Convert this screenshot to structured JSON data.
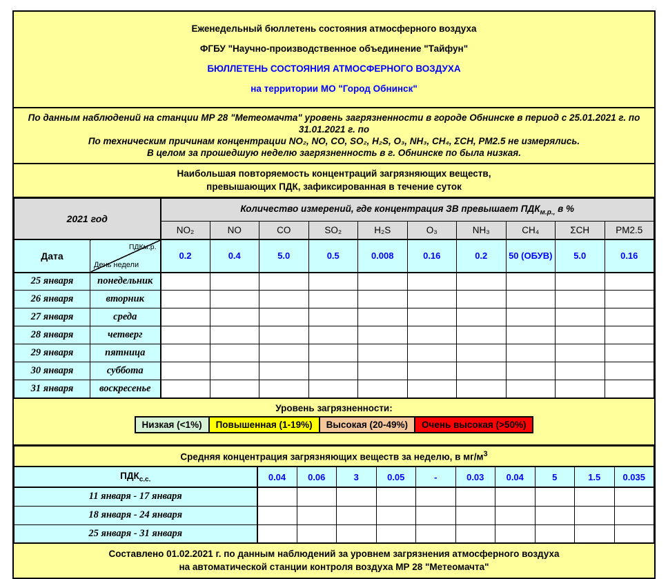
{
  "colors": {
    "page_yellow": "#ffff9c",
    "header_gray": "#dcdcdc",
    "cell_cyan": "#ccffff",
    "value_blue": "#0000ff",
    "title_blue": "#0000ff"
  },
  "title": {
    "line1": "Еженедельный бюллетень состояния атмосферного воздуха",
    "line2": "ФГБУ \"Научно-производственное объединение \"Тайфун\"",
    "line3": "БЮЛЛЕТЕНЬ СОСТОЯНИЯ АТМОСФЕРНОГО ВОЗДУХА",
    "line4": "на территории МО \"Город Обнинск\""
  },
  "intro": {
    "line1a": "По данным наблюдений на станции МР 28 \"Метеомачта\" уровень загрязненности в городе Обнинске в период с 25.01.2021 г. по",
    "line1b": "31.01.2021 г. по",
    "line2": "По техническим причинам концентрации NO₂, NO, CO, SO₂, H₂S, O₃, NH₃, CH₄, ΣCH, PM2.5 не измерялись.",
    "line3": "В целом за прошедшую неделю загрязненность в г. Обнинске по была низкая."
  },
  "exceed_table": {
    "section_title_line1": "Наибольшая повторяемость концентраций загрязняющих веществ,",
    "section_title_line2": "превышающих ПДК, зафиксированная в течение суток",
    "year_label": "2021 год",
    "measure_header": {
      "pre": "Количество измерений, где концентрация ЗВ превышает ПДК",
      "sub": "м.р.,",
      "post": " в %"
    },
    "columns": [
      "NO₂",
      "NO",
      "CO",
      "SO₂",
      "H₂S",
      "O₃",
      "NH₃",
      "CH₄",
      "ΣCH",
      "PM2.5"
    ],
    "date_label": "Дата",
    "diag_top": "ПДКм.р.",
    "diag_bottom": "День недели",
    "pdk_values": [
      "0.2",
      "0.4",
      "5.0",
      "0.5",
      "0.008",
      "0.16",
      "0.2",
      "50 (ОБУВ)",
      "5.0",
      "0.16"
    ],
    "rows": [
      {
        "date": "25 января",
        "day": "понедельник"
      },
      {
        "date": "26 января",
        "day": "вторник"
      },
      {
        "date": "27 января",
        "day": "среда"
      },
      {
        "date": "28 января",
        "day": "четверг"
      },
      {
        "date": "29 января",
        "day": "пятница"
      },
      {
        "date": "30 января",
        "day": "суббота"
      },
      {
        "date": "31 января",
        "day": "воскресенье"
      }
    ]
  },
  "legend": {
    "title": "Уровень загрязненности:",
    "items": [
      {
        "label": "Низкая (<1%)",
        "color": "#d5f2d5"
      },
      {
        "label": "Повышенная (1-19%)",
        "color": "#ffff00"
      },
      {
        "label": "Высокая (20-49%)",
        "color": "#f5c79b"
      },
      {
        "label": "Очень высокая (>50%)",
        "color": "#ff0000"
      }
    ]
  },
  "avg_table": {
    "title": {
      "pre": "Средняя концентрация загрязняющих веществ за неделю, в мг/м",
      "sup": "3"
    },
    "pdk_ss": {
      "pre": "ПДК",
      "sub": "с.с."
    },
    "values": [
      "0.04",
      "0.06",
      "3",
      "0.05",
      "-",
      "0.03",
      "0.04",
      "5",
      "1.5",
      "0.035"
    ],
    "weeks": [
      "11 января - 17 января",
      "18 января - 24 января",
      "25 января - 31 января"
    ]
  },
  "footer": {
    "line1": "Составлено 01.02.2021 г. по данным наблюдений за уровнем загрязнения атмосферного воздуха",
    "line2": "на автоматической станции контроля воздуха МР 28 \"Метеомачта\""
  }
}
